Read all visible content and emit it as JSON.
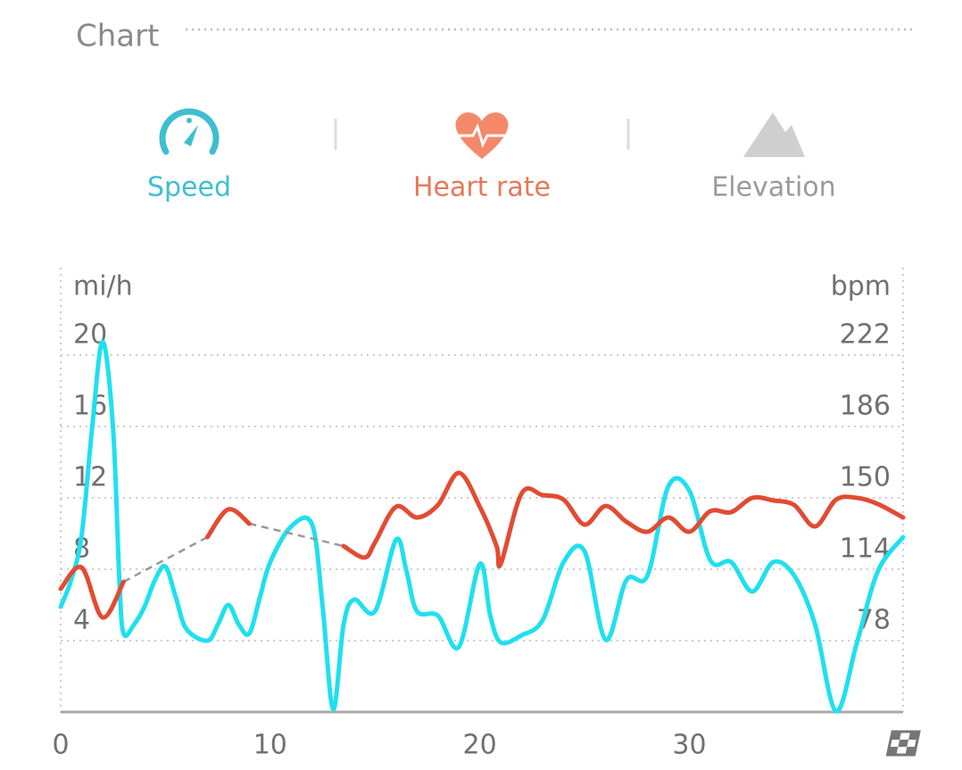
{
  "header": {
    "title": "Chart"
  },
  "tabs": [
    {
      "label": "Speed",
      "color": "#3dbfce"
    },
    {
      "label": "Heart rate",
      "color": "#e8775a"
    },
    {
      "label": "Elevation",
      "color": "#9a9a9a"
    }
  ],
  "chart_data": {
    "type": "line",
    "y_label": "mi/h",
    "y2_label": "bpm",
    "xlim": [
      0,
      40.2
    ],
    "xticks": [
      0,
      10,
      20,
      30
    ],
    "ylim": [
      0,
      25
    ],
    "yticks": [
      4,
      8,
      12,
      16,
      20
    ],
    "y2lim": [
      42,
      267
    ],
    "y2ticks": [
      78,
      114,
      150,
      186,
      222
    ],
    "grid": true,
    "series": [
      {
        "name": "Speed",
        "color": "#1fe0ef",
        "x": [
          0,
          0.5,
          1,
          1.5,
          2,
          2.5,
          2.8,
          3,
          3.5,
          4,
          4.5,
          5,
          5.5,
          6,
          7,
          7.5,
          8,
          8.5,
          9,
          9.5,
          10,
          11,
          12,
          12.5,
          13,
          13.5,
          14,
          15,
          16,
          16.5,
          17,
          18,
          19,
          20,
          20.5,
          21,
          22,
          23,
          24,
          25,
          26,
          27,
          28,
          29,
          30,
          31,
          32,
          33,
          34,
          35,
          36,
          37,
          38,
          39,
          40.2
        ],
        "values": [
          5.9,
          7.4,
          9.9,
          15.9,
          20.75,
          15.9,
          7.4,
          4.4,
          4.9,
          5.9,
          7.4,
          8.15,
          6.4,
          4.65,
          4,
          4.9,
          6,
          4.9,
          4.4,
          6.4,
          8.4,
          10.4,
          10.5,
          5.9,
          0.15,
          4.9,
          6.3,
          5.65,
          9.65,
          7.9,
          5.65,
          5.4,
          3.65,
          8.3,
          5.4,
          3.9,
          4.3,
          5.15,
          8.4,
          9,
          4.05,
          7.4,
          7.65,
          12.65,
          12.4,
          8.5,
          8.4,
          6.75,
          8.4,
          7.65,
          4.9,
          0.05,
          3.9,
          7.9,
          9.8
        ]
      },
      {
        "name": "Heart rate",
        "color": "#e24b33",
        "axis": "y2",
        "x": [
          0,
          1,
          2,
          3,
          5,
          7,
          8,
          9,
          11,
          13.5,
          14.5,
          15,
          16,
          17,
          18,
          19,
          20,
          20.8,
          21,
          22,
          23,
          24,
          25,
          26,
          27,
          28,
          29,
          30,
          31,
          32,
          33,
          34,
          35,
          36,
          37,
          38,
          39,
          40.2
        ],
        "values": [
          104.1,
          114.9,
          89.7,
          107.7,
          null,
          130.2,
          144.2,
          137,
          null,
          125.7,
          119.9,
          127.5,
          145.5,
          140.1,
          146.4,
          162.6,
          145.5,
          125.7,
          116.7,
          152.3,
          151.4,
          149.1,
          136.5,
          145.9,
          137.9,
          132.9,
          140.1,
          132.9,
          143.3,
          142.8,
          150,
          148.7,
          146.4,
          135.6,
          149.1,
          150,
          146.9,
          140.1
        ]
      }
    ]
  }
}
